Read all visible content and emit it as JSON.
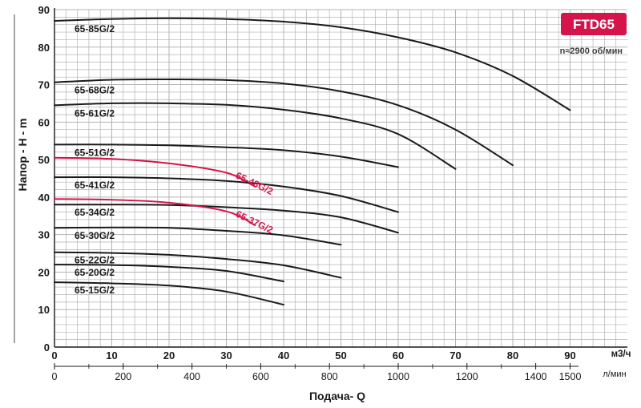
{
  "chart_data": {
    "type": "line",
    "title": "FTD65",
    "subtitle": "n≈2900 об/мин",
    "xlabel": "Подача- Q",
    "ylabel": "Напор - Н - m",
    "x_unit": "м3/ч",
    "x2_unit": "л/мин",
    "xlim": [
      0,
      100
    ],
    "ylim": [
      0,
      90
    ],
    "x_ticks": [
      0,
      10,
      20,
      30,
      40,
      50,
      60,
      70,
      80,
      90
    ],
    "y_ticks": [
      0,
      10,
      20,
      30,
      40,
      50,
      60,
      70,
      80,
      90
    ],
    "x2_ticks": [
      "0",
      "200",
      "400",
      "600",
      "800",
      "1000",
      "1200",
      "1400",
      "1500"
    ],
    "grid": true,
    "colors": {
      "standard": "#1a1a1a",
      "reduced": "#d4144a",
      "badge": "#d4144a",
      "grid": "#b3b3b3"
    },
    "series": [
      {
        "name": "65-85G/2",
        "color": "black",
        "x": [
          0,
          10,
          20,
          30,
          40,
          50,
          60,
          70,
          80,
          90
        ],
        "y": [
          87,
          87.5,
          87.7,
          87.5,
          86.8,
          85.3,
          82.6,
          78.6,
          72.3,
          63.2
        ]
      },
      {
        "name": "65-68G/2",
        "color": "black",
        "x": [
          0,
          10,
          20,
          30,
          40,
          50,
          60,
          70,
          80
        ],
        "y": [
          70.6,
          71.3,
          71.4,
          71.2,
          70.3,
          68.2,
          64.5,
          58,
          48.5
        ]
      },
      {
        "name": "65-61G/2",
        "color": "black",
        "x": [
          0,
          10,
          20,
          30,
          40,
          50,
          60,
          70
        ],
        "y": [
          64.5,
          65,
          65,
          64.6,
          63.3,
          61,
          56.8,
          47.5
        ]
      },
      {
        "name": "65-51G/2",
        "color": "black",
        "x": [
          0,
          10,
          20,
          30,
          40,
          50,
          60
        ],
        "y": [
          54,
          54,
          53.8,
          53.3,
          52.5,
          50.8,
          48
        ]
      },
      {
        "name": "65-48G/2",
        "color": "red",
        "x": [
          0,
          10,
          20,
          30,
          35
        ],
        "y": [
          50.5,
          50.2,
          49,
          46.5,
          42.8
        ]
      },
      {
        "name": "65-41G/2",
        "color": "black",
        "x": [
          0,
          10,
          20,
          30,
          40,
          50,
          60
        ],
        "y": [
          45.3,
          45.3,
          45,
          44.3,
          42.8,
          40.3,
          36
        ]
      },
      {
        "name": "65-34G/2",
        "color": "black",
        "x": [
          0,
          10,
          20,
          30,
          40,
          50,
          60
        ],
        "y": [
          38,
          38,
          37.9,
          37.3,
          36.4,
          34.6,
          30.5
        ]
      },
      {
        "name": "65-37G/2",
        "color": "red",
        "x": [
          0,
          10,
          20,
          30,
          35
        ],
        "y": [
          39.5,
          39.3,
          38.5,
          36.2,
          32.5
        ]
      },
      {
        "name": "65-30G/2",
        "color": "black",
        "x": [
          0,
          10,
          20,
          30,
          40,
          50
        ],
        "y": [
          31.8,
          31.9,
          31.8,
          31,
          29.8,
          27.3
        ]
      },
      {
        "name": "65-22G/2",
        "color": "black",
        "x": [
          0,
          10,
          20,
          30,
          40,
          50
        ],
        "y": [
          25.3,
          25.1,
          24.6,
          23.5,
          21.8,
          18.5
        ]
      },
      {
        "name": "65-20G/2",
        "color": "black",
        "x": [
          0,
          10,
          20,
          30,
          40
        ],
        "y": [
          22,
          21.9,
          21.4,
          20.3,
          17.5
        ]
      },
      {
        "name": "65-15G/2",
        "color": "black",
        "x": [
          0,
          10,
          20,
          30,
          40
        ],
        "y": [
          17.3,
          17,
          16.4,
          14.8,
          11.3
        ]
      }
    ]
  }
}
